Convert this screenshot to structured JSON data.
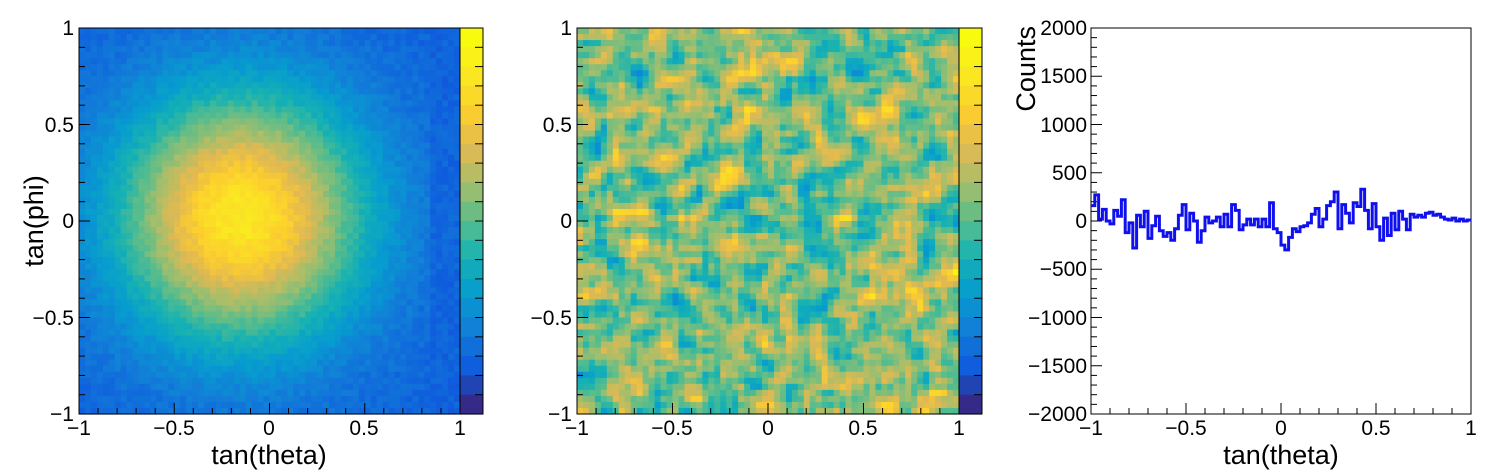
{
  "chart_data": [
    {
      "type": "heatmap",
      "title": "",
      "xlabel": "tan(theta)",
      "ylabel": "tan(phi)",
      "xlim": [
        -1,
        1
      ],
      "ylim": [
        -1,
        1
      ],
      "x_ticks": [
        "−1",
        "−0.5",
        "0",
        "0.5",
        "1"
      ],
      "y_ticks": [
        "−1",
        "−0.5",
        "0",
        "0.5",
        "1"
      ],
      "colorbar": true,
      "colorbar_labels": "none",
      "colormap": "parula",
      "description_of_content": "2D Gaussian-like blob peaked near (-0.15, 0.0), width ~0.45",
      "center": [
        -0.15,
        0.02
      ],
      "sigma": [
        0.45,
        0.45
      ]
    },
    {
      "type": "heatmap",
      "title": "",
      "xlabel": "",
      "ylabel": "",
      "xlim": [
        -1,
        1
      ],
      "ylim": [
        -1,
        1
      ],
      "x_ticks": [
        "−1",
        "−0.5",
        "0",
        "0.5",
        "1"
      ],
      "y_ticks": [
        "−1",
        "−0.5",
        "0",
        "0.5",
        "1"
      ],
      "colorbar": true,
      "colorbar_labels": "none",
      "colormap": "parula"
    },
    {
      "type": "line",
      "style": "step",
      "title": "",
      "xlabel": "tan(theta)",
      "ylabel": "Counts",
      "xlim": [
        -1,
        1
      ],
      "ylim": [
        -2000,
        2000
      ],
      "x_ticks": [
        "−1",
        "−0.5",
        "0",
        "0.5",
        "1"
      ],
      "y_ticks": [
        "−2000",
        "−1500",
        "−1000",
        "−500",
        "0",
        "500",
        "1000",
        "1500",
        "2000"
      ],
      "color": "#1010ee",
      "series": [
        {
          "x": [
            -1.0,
            -0.98,
            -0.96,
            -0.94,
            -0.92,
            -0.9,
            -0.88,
            -0.86,
            -0.84,
            -0.82,
            -0.8,
            -0.78,
            -0.76,
            -0.74,
            -0.72,
            -0.7,
            -0.68,
            -0.66,
            -0.64,
            -0.62,
            -0.6,
            -0.58,
            -0.56,
            -0.54,
            -0.52,
            -0.5,
            -0.48,
            -0.46,
            -0.44,
            -0.42,
            -0.4,
            -0.38,
            -0.36,
            -0.34,
            -0.32,
            -0.3,
            -0.28,
            -0.26,
            -0.24,
            -0.22,
            -0.2,
            -0.18,
            -0.16,
            -0.14,
            -0.12,
            -0.1,
            -0.08,
            -0.06,
            -0.04,
            -0.02,
            0.0,
            0.02,
            0.04,
            0.06,
            0.08,
            0.1,
            0.12,
            0.14,
            0.16,
            0.18,
            0.2,
            0.22,
            0.24,
            0.26,
            0.28,
            0.3,
            0.32,
            0.34,
            0.36,
            0.38,
            0.4,
            0.42,
            0.44,
            0.46,
            0.48,
            0.5,
            0.52,
            0.54,
            0.56,
            0.58,
            0.6,
            0.62,
            0.64,
            0.66,
            0.68,
            0.7,
            0.72,
            0.74,
            0.76,
            0.78,
            0.8,
            0.82,
            0.84,
            0.86,
            0.88,
            0.9,
            0.92,
            0.94,
            0.96,
            0.98
          ],
          "values": [
            160,
            270,
            20,
            120,
            0,
            -30,
            110,
            50,
            220,
            -120,
            -20,
            -280,
            60,
            -60,
            100,
            -180,
            -50,
            50,
            -100,
            -160,
            -120,
            -200,
            -80,
            60,
            170,
            -90,
            80,
            0,
            -220,
            -100,
            40,
            -20,
            0,
            40,
            -60,
            70,
            -60,
            170,
            110,
            -90,
            -40,
            20,
            -40,
            20,
            -60,
            20,
            -60,
            190,
            -80,
            -120,
            -250,
            -300,
            -170,
            -80,
            -110,
            -60,
            -50,
            -20,
            70,
            130,
            -60,
            20,
            160,
            200,
            300,
            -80,
            170,
            80,
            -20,
            190,
            150,
            330,
            110,
            -80,
            180,
            -60,
            -200,
            30,
            -150,
            80,
            -90,
            100,
            20,
            -90,
            70,
            40,
            60,
            40,
            80,
            90,
            60,
            70,
            40,
            20,
            10,
            30,
            0,
            20,
            0,
            10
          ]
        }
      ]
    }
  ]
}
